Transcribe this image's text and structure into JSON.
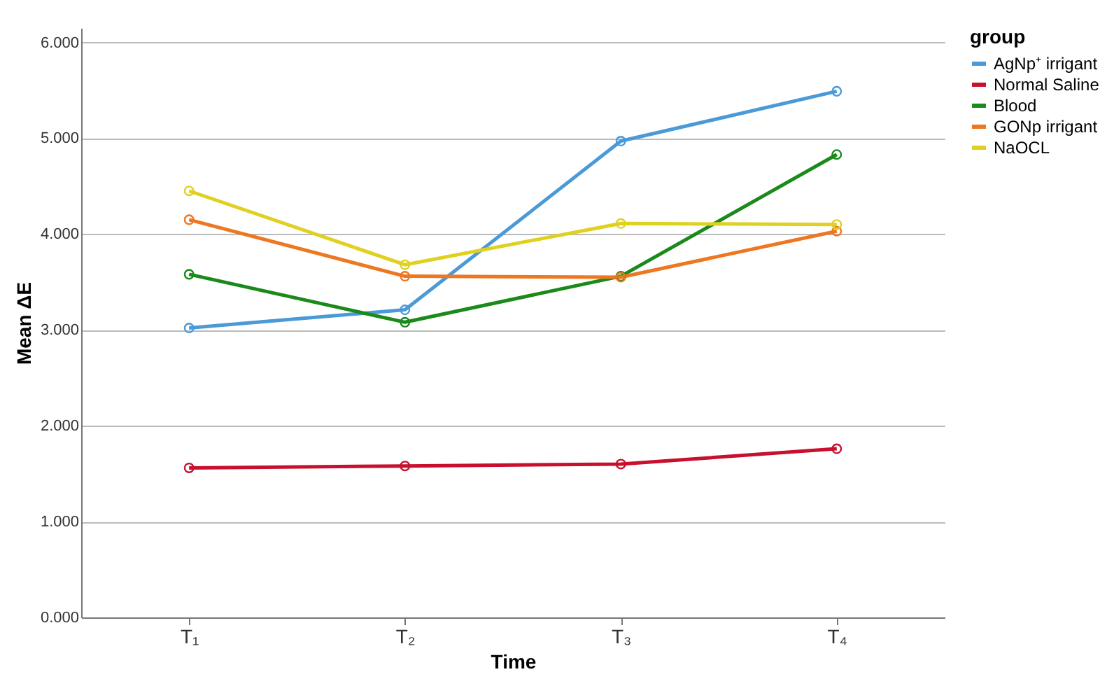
{
  "chart_data": {
    "type": "line",
    "xlabel": "Time",
    "ylabel": "Mean ΔE",
    "legend_title": "group",
    "categories": [
      "T₁",
      "T₂",
      "T₃",
      "T₄"
    ],
    "series": [
      {
        "name": "AgNp⁺ irrigant",
        "color": "#4a9ad8",
        "values": [
          3.02,
          3.21,
          4.97,
          5.49
        ]
      },
      {
        "name": "Normal Saline",
        "color": "#c8102e",
        "values": [
          1.56,
          1.58,
          1.6,
          1.76
        ]
      },
      {
        "name": "Blood",
        "color": "#1a8a1a",
        "values": [
          3.58,
          3.08,
          3.56,
          4.83
        ]
      },
      {
        "name": "GONp irrigant",
        "color": "#ee7722",
        "values": [
          4.15,
          3.56,
          3.55,
          4.03
        ]
      },
      {
        "name": "NaOCL",
        "color": "#e0d020",
        "values": [
          4.45,
          3.68,
          4.11,
          4.1
        ]
      }
    ],
    "ylim": [
      0,
      6.15
    ],
    "yticks": [
      {
        "value": 0,
        "label": "0.000"
      },
      {
        "value": 1,
        "label": "1.000"
      },
      {
        "value": 2,
        "label": "2.000"
      },
      {
        "value": 3,
        "label": "3.000"
      },
      {
        "value": 4,
        "label": "4.000"
      },
      {
        "value": 5,
        "label": "5.000"
      },
      {
        "value": 6,
        "label": "6.000"
      }
    ],
    "grid": "y",
    "legend": "top right",
    "marker": "circle",
    "line_style": "solid"
  }
}
